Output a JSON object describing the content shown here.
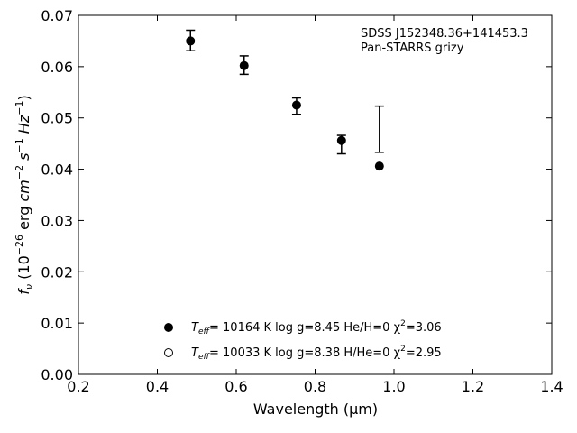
{
  "chart_data": {
    "type": "scatter",
    "xlabel": "Wavelength (μm)",
    "ylabel_parts": {
      "f": "f",
      "nu": "ν",
      "open": " (10",
      "exp_m26": "−26",
      "erg": " erg ",
      "cm": "cm",
      "exp_m2": "−2",
      "s": " s",
      "exp_m1a": "−1",
      "hz": " Hz",
      "exp_m1b": "−1",
      "close": ")"
    },
    "xlim": [
      0.2,
      1.4
    ],
    "ylim": [
      0.0,
      0.07
    ],
    "xticks": [
      "0.2",
      "0.4",
      "0.6",
      "0.8",
      "1.0",
      "1.2",
      "1.4"
    ],
    "yticks": [
      "0.00",
      "0.01",
      "0.02",
      "0.03",
      "0.04",
      "0.05",
      "0.06",
      "0.07"
    ],
    "annotation": [
      "SDSS J152348.36+141453.3",
      "Pan-STARRS grizy"
    ],
    "observed": [
      {
        "x": 0.484,
        "y": 0.0651,
        "err": 0.002
      },
      {
        "x": 0.62,
        "y": 0.0603,
        "err": 0.0018
      },
      {
        "x": 0.753,
        "y": 0.0523,
        "err": 0.0016
      },
      {
        "x": 0.867,
        "y": 0.0448,
        "err": 0.0018
      },
      {
        "x": 0.963,
        "y": 0.0478,
        "err": 0.0045
      }
    ],
    "series": [
      {
        "marker": "filled",
        "points": [
          {
            "x": 0.484,
            "y": 0.065
          },
          {
            "x": 0.62,
            "y": 0.0602
          },
          {
            "x": 0.753,
            "y": 0.0525
          },
          {
            "x": 0.867,
            "y": 0.0456
          },
          {
            "x": 0.963,
            "y": 0.0406
          }
        ]
      },
      {
        "marker": "open",
        "points": []
      }
    ],
    "legend": [
      {
        "marker": "filled",
        "teff": "T",
        "teff_sub": "eff",
        "text": "= 10164 K  log g=8.45  He/H=0  χ",
        "chi_sup": "2",
        "chi_val": "=3.06"
      },
      {
        "marker": "open",
        "teff": "T",
        "teff_sub": "eff",
        "text": "= 10033 K  log g=8.38  H/He=0  χ",
        "chi_sup": "2",
        "chi_val": "=2.95"
      }
    ],
    "legend_position": "lower-center",
    "grid": false
  }
}
